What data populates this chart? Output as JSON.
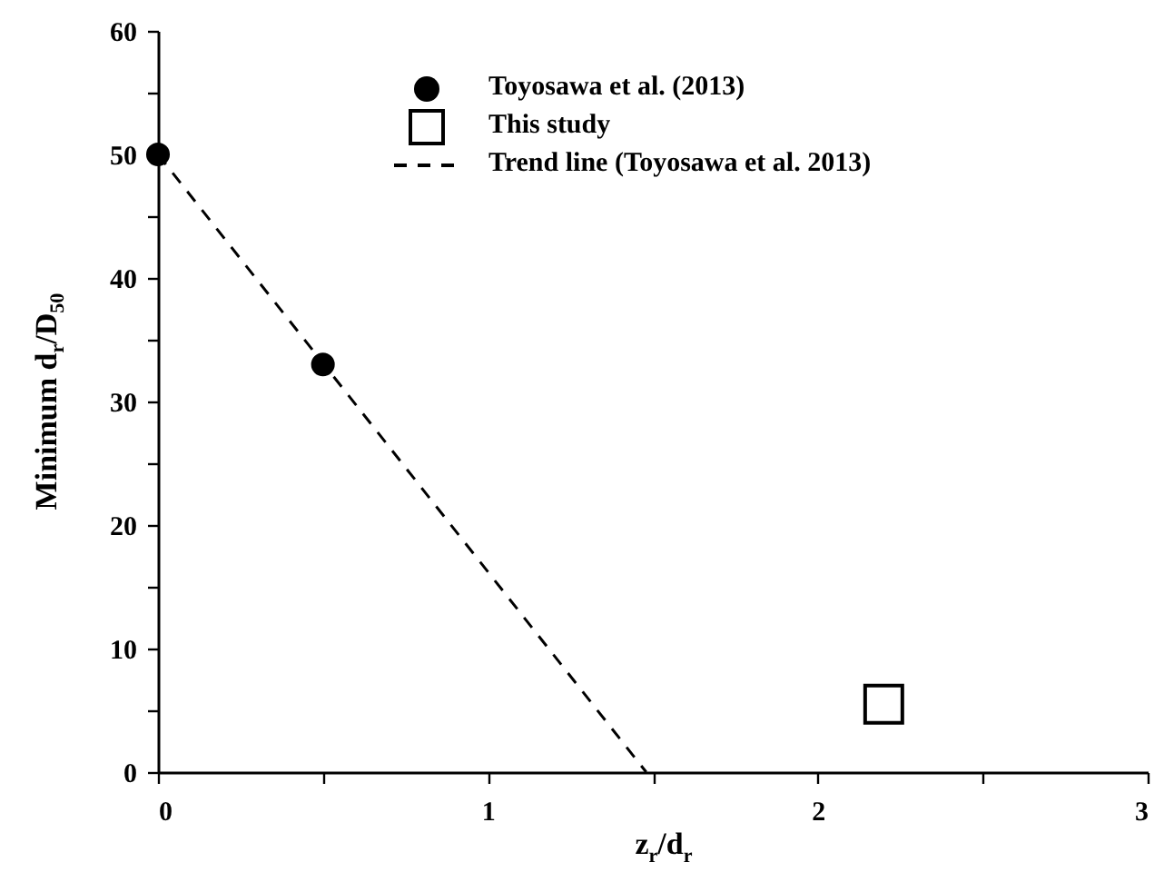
{
  "chart_data": {
    "type": "scatter",
    "xlabel": "z$_{r}$/d$_{r}$",
    "ylabel": "Minimum d$_{r}$/D$_{50}$",
    "xlim": [
      0,
      3
    ],
    "ylim": [
      0,
      60
    ],
    "xticks": [
      0,
      {
        "value": 0.5,
        "label": null
      },
      1,
      {
        "value": 1.5,
        "label": null
      },
      2,
      {
        "value": 2.5,
        "label": null
      },
      3
    ],
    "yticks": [
      0,
      {
        "value": 5,
        "label": null
      },
      10,
      {
        "value": 15,
        "label": null
      },
      20,
      {
        "value": 25,
        "label": null
      },
      30,
      {
        "value": 35,
        "label": null
      },
      40,
      {
        "value": 45,
        "label": null
      },
      50,
      {
        "value": 55,
        "label": null
      },
      60
    ],
    "legend": "top",
    "grid": false,
    "series": [
      {
        "name": "Toyosawa et al. (2013)",
        "marker": "circle",
        "color": "#000000",
        "x": [
          0,
          0.5
        ],
        "values": [
          50,
          33
        ]
      },
      {
        "name": "This study",
        "marker": "square",
        "color": "#000000",
        "x": [
          2.2
        ],
        "values": [
          5.5
        ]
      },
      {
        "name": "Trend line (Toyosawa et al. 2013)",
        "type": "line",
        "line_style": "dashed",
        "color": "#000000",
        "x": [
          0,
          1.48
        ],
        "values": [
          50,
          0
        ]
      }
    ]
  }
}
